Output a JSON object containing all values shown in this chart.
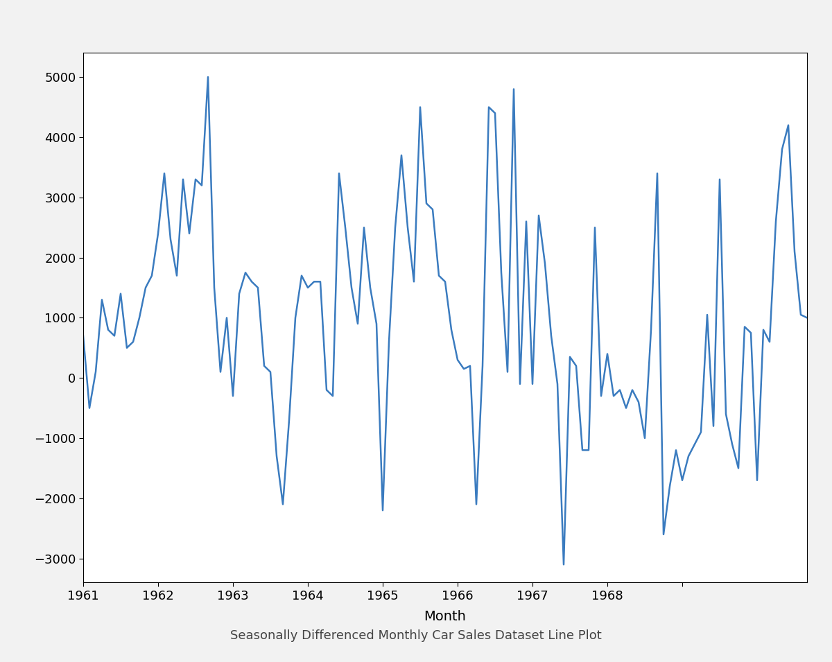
{
  "title": "Seasonally Differenced Monthly Car Sales Dataset Line Plot",
  "xlabel": "Month",
  "line_color": "#3a7bbf",
  "line_width": 1.8,
  "plot_bg": "#ffffff",
  "fig_bg": "#f2f2f2",
  "ylim": [
    -3400,
    5400
  ],
  "yticks": [
    -3000,
    -2000,
    -1000,
    0,
    1000,
    2000,
    3000,
    4000,
    5000
  ],
  "values": [
    700,
    -500,
    100,
    1300,
    800,
    700,
    1400,
    500,
    600,
    1000,
    1500,
    1700,
    2400,
    3400,
    2300,
    1700,
    3300,
    2400,
    3300,
    3200,
    5000,
    1500,
    100,
    1000,
    -300,
    1400,
    1750,
    1600,
    1500,
    200,
    100,
    -1300,
    -2100,
    -700,
    1000,
    1700,
    1500,
    1600,
    1600,
    -200,
    -300,
    3400,
    2500,
    1500,
    900,
    2500,
    1500,
    900,
    -2200,
    600,
    2500,
    3700,
    2500,
    1600,
    4500,
    2900,
    2800,
    1700,
    1600,
    800,
    300,
    150,
    200,
    -2100,
    200,
    4500,
    4400,
    1750,
    100,
    4800,
    -100,
    2600,
    -100,
    2700,
    1900,
    700,
    -100,
    -3100,
    350,
    200,
    -1200,
    -1200,
    2500,
    -300,
    400,
    -300,
    -200,
    -500,
    -200,
    -400,
    -1000,
    800,
    3400,
    -2600,
    -1800,
    -1200,
    -1700,
    -1300,
    -1100,
    -900,
    1050,
    -800,
    3300,
    -600,
    -1100,
    -1500,
    850,
    750,
    -1700,
    800,
    600,
    2600,
    3800,
    4200,
    2100,
    1050,
    1000
  ],
  "xtick_positions": [
    0,
    12,
    24,
    36,
    48,
    60,
    72,
    84,
    96
  ],
  "xtick_labels": [
    "1961",
    "1962",
    "1963",
    "1964",
    "1965",
    "1966",
    "1967",
    "1968",
    ""
  ]
}
